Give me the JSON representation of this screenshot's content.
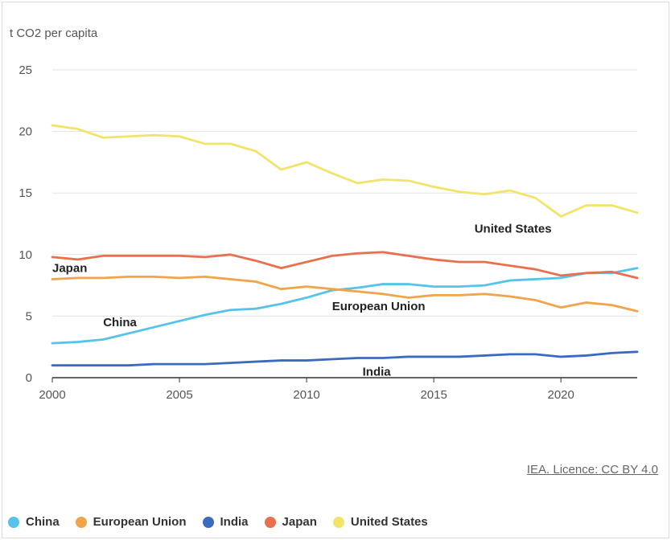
{
  "chart_data": {
    "type": "line",
    "ylabel": "t CO2 per capita",
    "xlabel": "",
    "x": [
      2000,
      2001,
      2002,
      2003,
      2004,
      2005,
      2006,
      2007,
      2008,
      2009,
      2010,
      2011,
      2012,
      2013,
      2014,
      2015,
      2016,
      2017,
      2018,
      2019,
      2020,
      2021,
      2022,
      2023
    ],
    "xlim": [
      2000,
      2023
    ],
    "ylim": [
      0,
      25
    ],
    "x_ticks": [
      "2000",
      "2005",
      "2010",
      "2015",
      "2020"
    ],
    "y_ticks": [
      "0",
      "5",
      "10",
      "15",
      "20",
      "25"
    ],
    "grid": "horizontal",
    "legend_position": "bottom",
    "source": "IEA. Licence: CC BY 4.0",
    "colors": {
      "China": "#56c3ea",
      "European Union": "#f0a54a",
      "India": "#3b6bbf",
      "Japan": "#e9704d",
      "United States": "#f2e46a"
    },
    "series": [
      {
        "name": "China",
        "values": [
          2.8,
          2.9,
          3.1,
          3.6,
          4.1,
          4.6,
          5.1,
          5.5,
          5.6,
          6.0,
          6.5,
          7.1,
          7.3,
          7.6,
          7.6,
          7.4,
          7.4,
          7.5,
          7.9,
          8.0,
          8.1,
          8.5,
          8.5,
          8.9
        ]
      },
      {
        "name": "European Union",
        "values": [
          8.0,
          8.1,
          8.1,
          8.2,
          8.2,
          8.1,
          8.2,
          8.0,
          7.8,
          7.2,
          7.4,
          7.2,
          7.0,
          6.8,
          6.5,
          6.7,
          6.7,
          6.8,
          6.6,
          6.3,
          5.7,
          6.1,
          5.9,
          5.4
        ]
      },
      {
        "name": "India",
        "values": [
          1.0,
          1.0,
          1.0,
          1.0,
          1.1,
          1.1,
          1.1,
          1.2,
          1.3,
          1.4,
          1.4,
          1.5,
          1.6,
          1.6,
          1.7,
          1.7,
          1.7,
          1.8,
          1.9,
          1.9,
          1.7,
          1.8,
          2.0,
          2.1
        ]
      },
      {
        "name": "Japan",
        "values": [
          9.8,
          9.6,
          9.9,
          9.9,
          9.9,
          9.9,
          9.8,
          10.0,
          9.5,
          8.9,
          9.4,
          9.9,
          10.1,
          10.2,
          9.9,
          9.6,
          9.4,
          9.4,
          9.1,
          8.8,
          8.3,
          8.5,
          8.6,
          8.1
        ]
      },
      {
        "name": "United States",
        "values": [
          20.5,
          20.2,
          19.5,
          19.6,
          19.7,
          19.6,
          19.0,
          19.0,
          18.4,
          16.9,
          17.5,
          16.6,
          15.8,
          16.1,
          16.0,
          15.5,
          15.1,
          14.9,
          15.2,
          14.6,
          13.1,
          14.0,
          14.0,
          13.4
        ]
      }
    ],
    "annotations": [
      {
        "text": "United States",
        "x": 2016.6,
        "y": 12.1
      },
      {
        "text": "Japan",
        "x": 2000.0,
        "y": 8.9
      },
      {
        "text": "European Union",
        "x": 2011.0,
        "y": 5.8
      },
      {
        "text": "China",
        "x": 2002.0,
        "y": 4.5
      },
      {
        "text": "India",
        "x": 2012.2,
        "y": 0.5
      }
    ]
  }
}
